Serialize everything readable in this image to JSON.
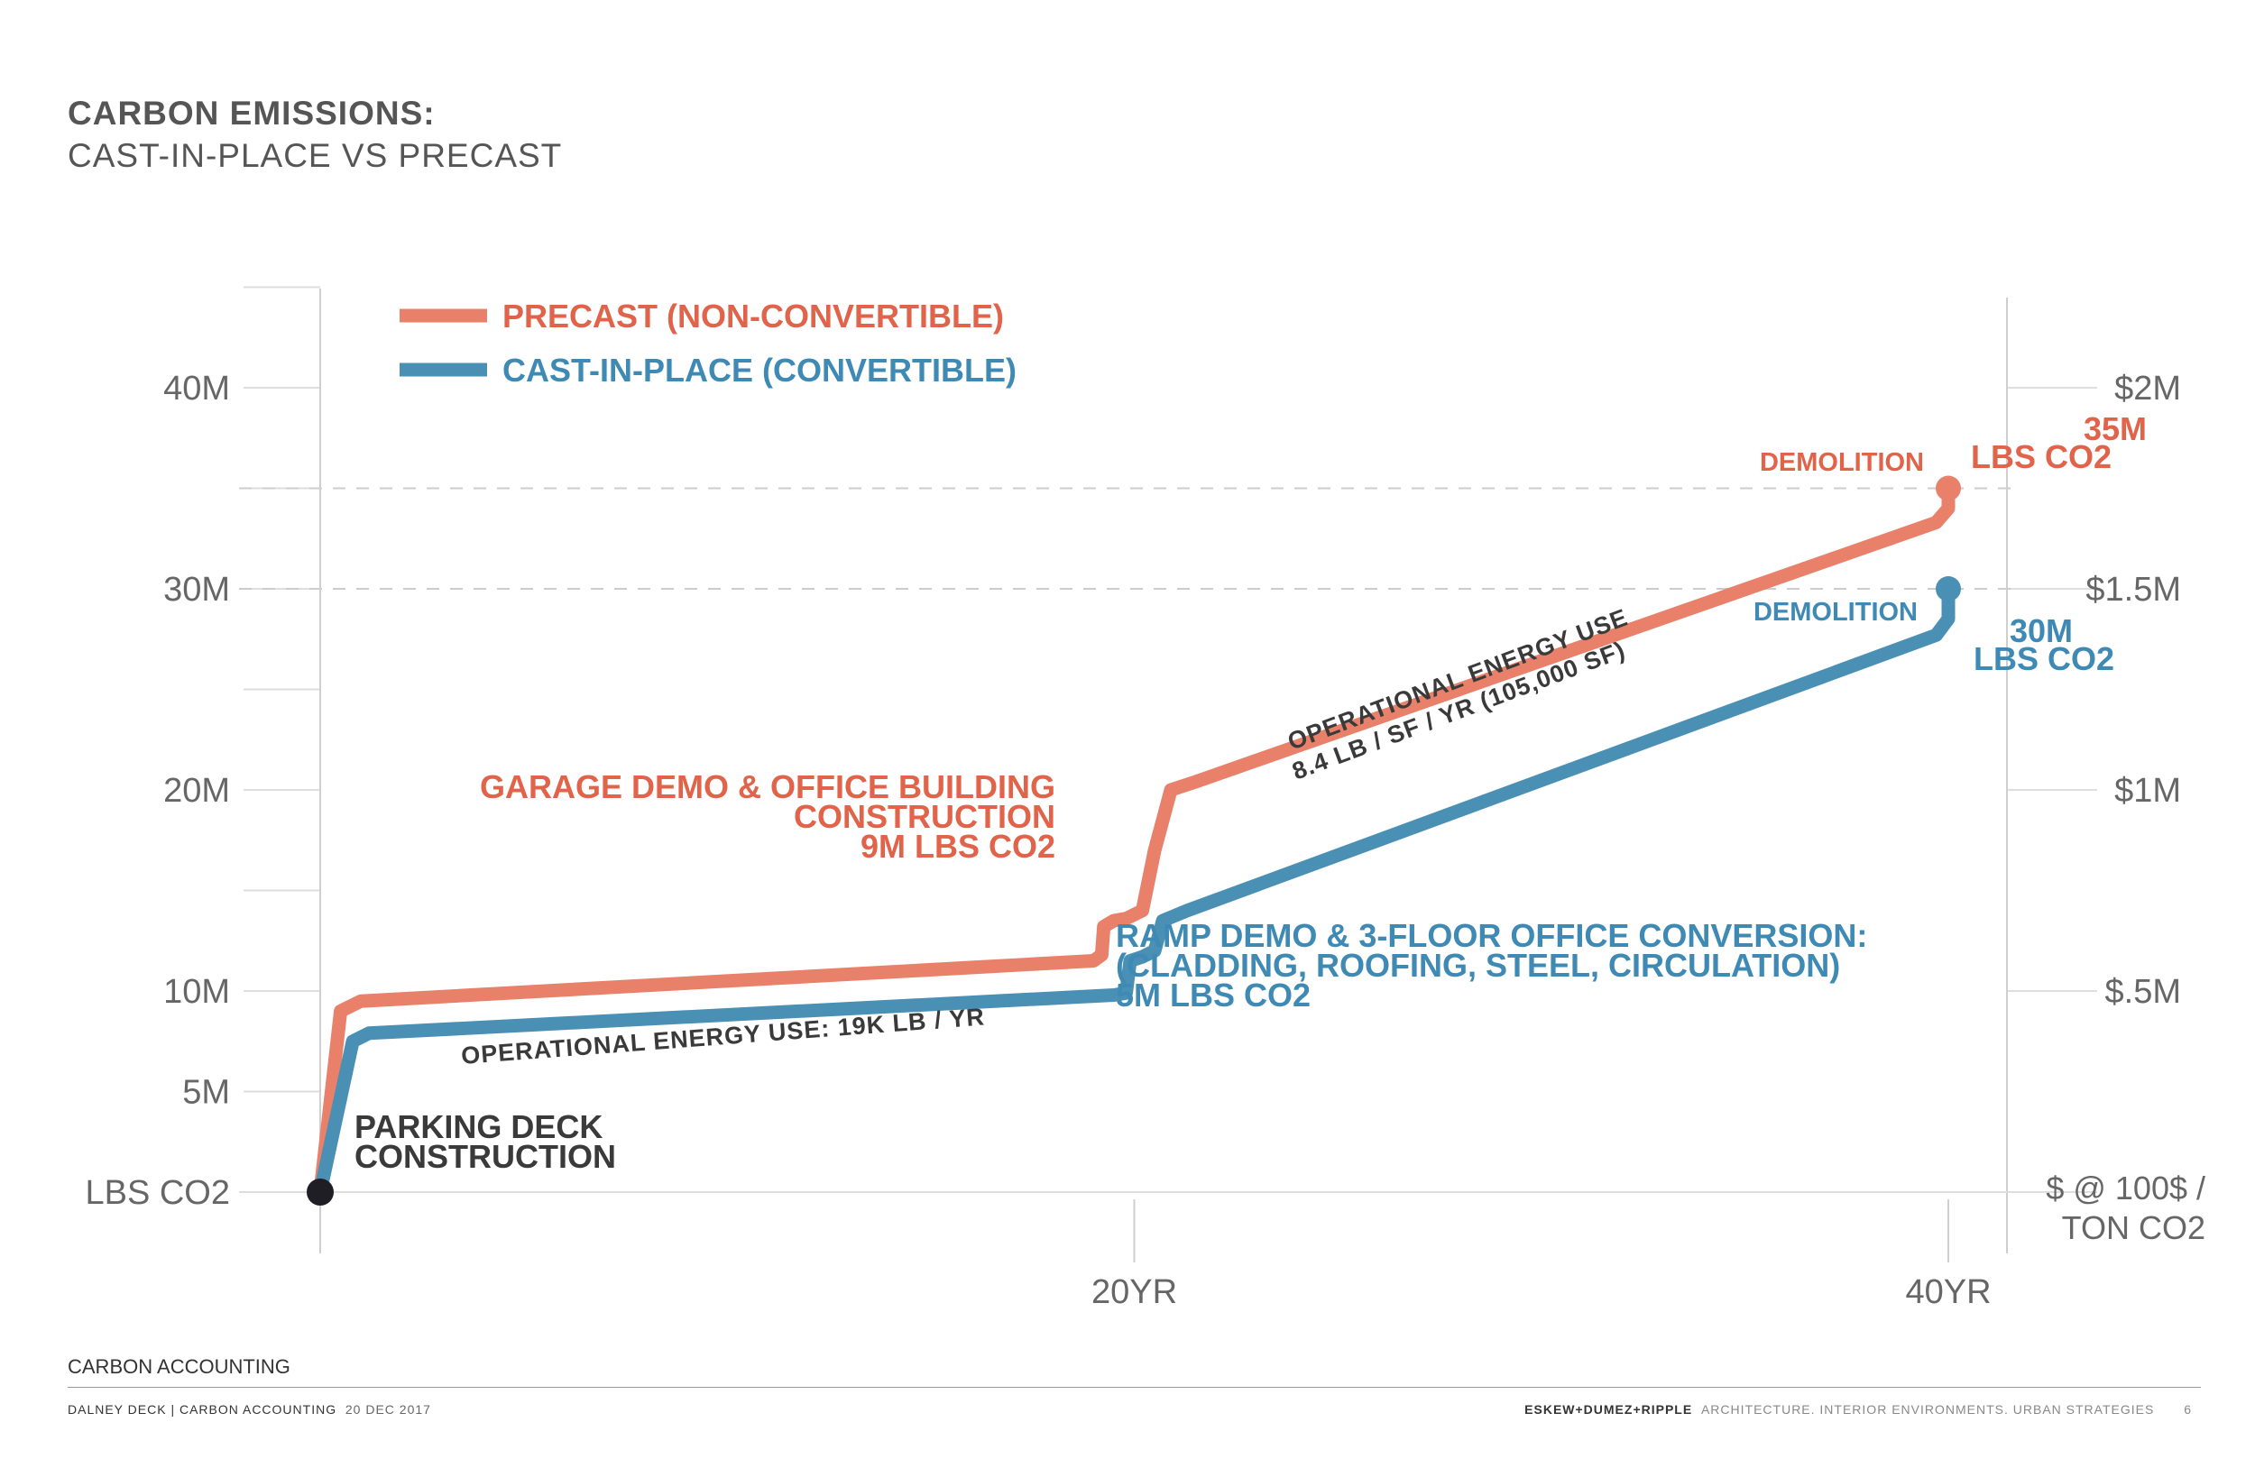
{
  "page": {
    "title_line1": "CARBON EMISSIONS:",
    "title_line2": "CAST-IN-PLACE VS PRECAST"
  },
  "colors": {
    "precast": "#E8806A",
    "cip": "#4A90B5",
    "precast_text": "#E0634A",
    "cip_text": "#3F8AB4"
  },
  "chart_data": {
    "type": "line",
    "title": "CARBON EMISSIONS: CAST-IN-PLACE VS PRECAST",
    "xlabel": "",
    "ylabel": "LBS CO2",
    "y2label": "$ @ 100$ / TON CO2",
    "x_range": [
      0,
      40
    ],
    "y_range": [
      0,
      45
    ],
    "x_ticks": [
      {
        "v": 20,
        "label": "20YR"
      },
      {
        "v": 40,
        "label": "40YR"
      }
    ],
    "y_ticks": [
      {
        "v": 0,
        "label": "LBS CO2"
      },
      {
        "v": 5,
        "label": "5M"
      },
      {
        "v": 10,
        "label": "10M"
      },
      {
        "v": 20,
        "label": "20M"
      },
      {
        "v": 30,
        "label": "30M"
      },
      {
        "v": 40,
        "label": "40M"
      }
    ],
    "y2_ticks": [
      {
        "v": 10,
        "label": "$.5M"
      },
      {
        "v": 20,
        "label": "$1M"
      },
      {
        "v": 30,
        "label": "$1.5M"
      },
      {
        "v": 40,
        "label": "$2M"
      }
    ],
    "y2_axis_label": [
      "$ @ 100$ /",
      "TON CO2"
    ],
    "dashed_levels": [
      35,
      30
    ],
    "legend": [
      {
        "name": "PRECAST (NON-CONVERTIBLE)",
        "key": "precast"
      },
      {
        "name": "CAST-IN-PLACE (CONVERTIBLE)",
        "key": "cip"
      }
    ],
    "series": [
      {
        "name": "PRECAST (NON-CONVERTIBLE)",
        "key": "precast",
        "points": [
          [
            0,
            0
          ],
          [
            0.5,
            9
          ],
          [
            1,
            9.5
          ],
          [
            19,
            11.5
          ],
          [
            19.2,
            11.8
          ],
          [
            19.25,
            13.2
          ],
          [
            19.5,
            13.5
          ],
          [
            19.8,
            13.6
          ],
          [
            20.2,
            14
          ],
          [
            20.5,
            17
          ],
          [
            20.9,
            20
          ],
          [
            21.5,
            20.4
          ],
          [
            39.7,
            33.3
          ],
          [
            40,
            34
          ],
          [
            40,
            35
          ]
        ]
      },
      {
        "name": "CAST-IN-PLACE (CONVERTIBLE)",
        "key": "cip",
        "points": [
          [
            0,
            0
          ],
          [
            0.8,
            7.5
          ],
          [
            1.2,
            7.9
          ],
          [
            19.5,
            9.8
          ],
          [
            19.8,
            9.9
          ],
          [
            19.9,
            11.5
          ],
          [
            20.2,
            11.7
          ],
          [
            20.5,
            12
          ],
          [
            20.7,
            13.5
          ],
          [
            21.3,
            14
          ],
          [
            39.7,
            27.7
          ],
          [
            40,
            28.5
          ],
          [
            40,
            30
          ]
        ]
      }
    ],
    "start_point": [
      0,
      0
    ],
    "end_markers": [
      {
        "key": "precast",
        "x": 40,
        "y": 35
      },
      {
        "key": "cip",
        "x": 40,
        "y": 30
      }
    ],
    "annotations": {
      "parking_deck": [
        "PARKING DECK",
        "CONSTRUCTION"
      ],
      "precast_jump": [
        "GARAGE DEMO & OFFICE BUILDING",
        "CONSTRUCTION",
        "9M LBS CO2"
      ],
      "cip_jump": [
        "RAMP DEMO & 3-FLOOR OFFICE CONVERSION:",
        "(CLADDING, ROOFING, STEEL, CIRCULATION)",
        "5M LBS CO2"
      ],
      "op_energy_1": "OPERATIONAL ENERGY USE: 19K LB / YR",
      "op_energy_2": [
        "OPERATIONAL ENERGY USE",
        "8.4 LB / SF / YR  (105,000 SF)"
      ],
      "demolition_precast": "DEMOLITION",
      "demolition_cip": "DEMOLITION",
      "end_precast": [
        "35M",
        "LBS CO2"
      ],
      "end_cip": [
        "30M",
        "LBS CO2"
      ]
    }
  },
  "footer": {
    "section_label": "CARBON ACCOUNTING",
    "left_project": "DALNEY DECK |  CARBON ACCOUNTING",
    "left_date": "20 DEC 2017",
    "right_firm": "ESKEW+DUMEZ+RIPPLE",
    "right_tagline": "ARCHITECTURE. INTERIOR ENVIRONMENTS. URBAN STRATEGIES",
    "page_number": "6"
  }
}
